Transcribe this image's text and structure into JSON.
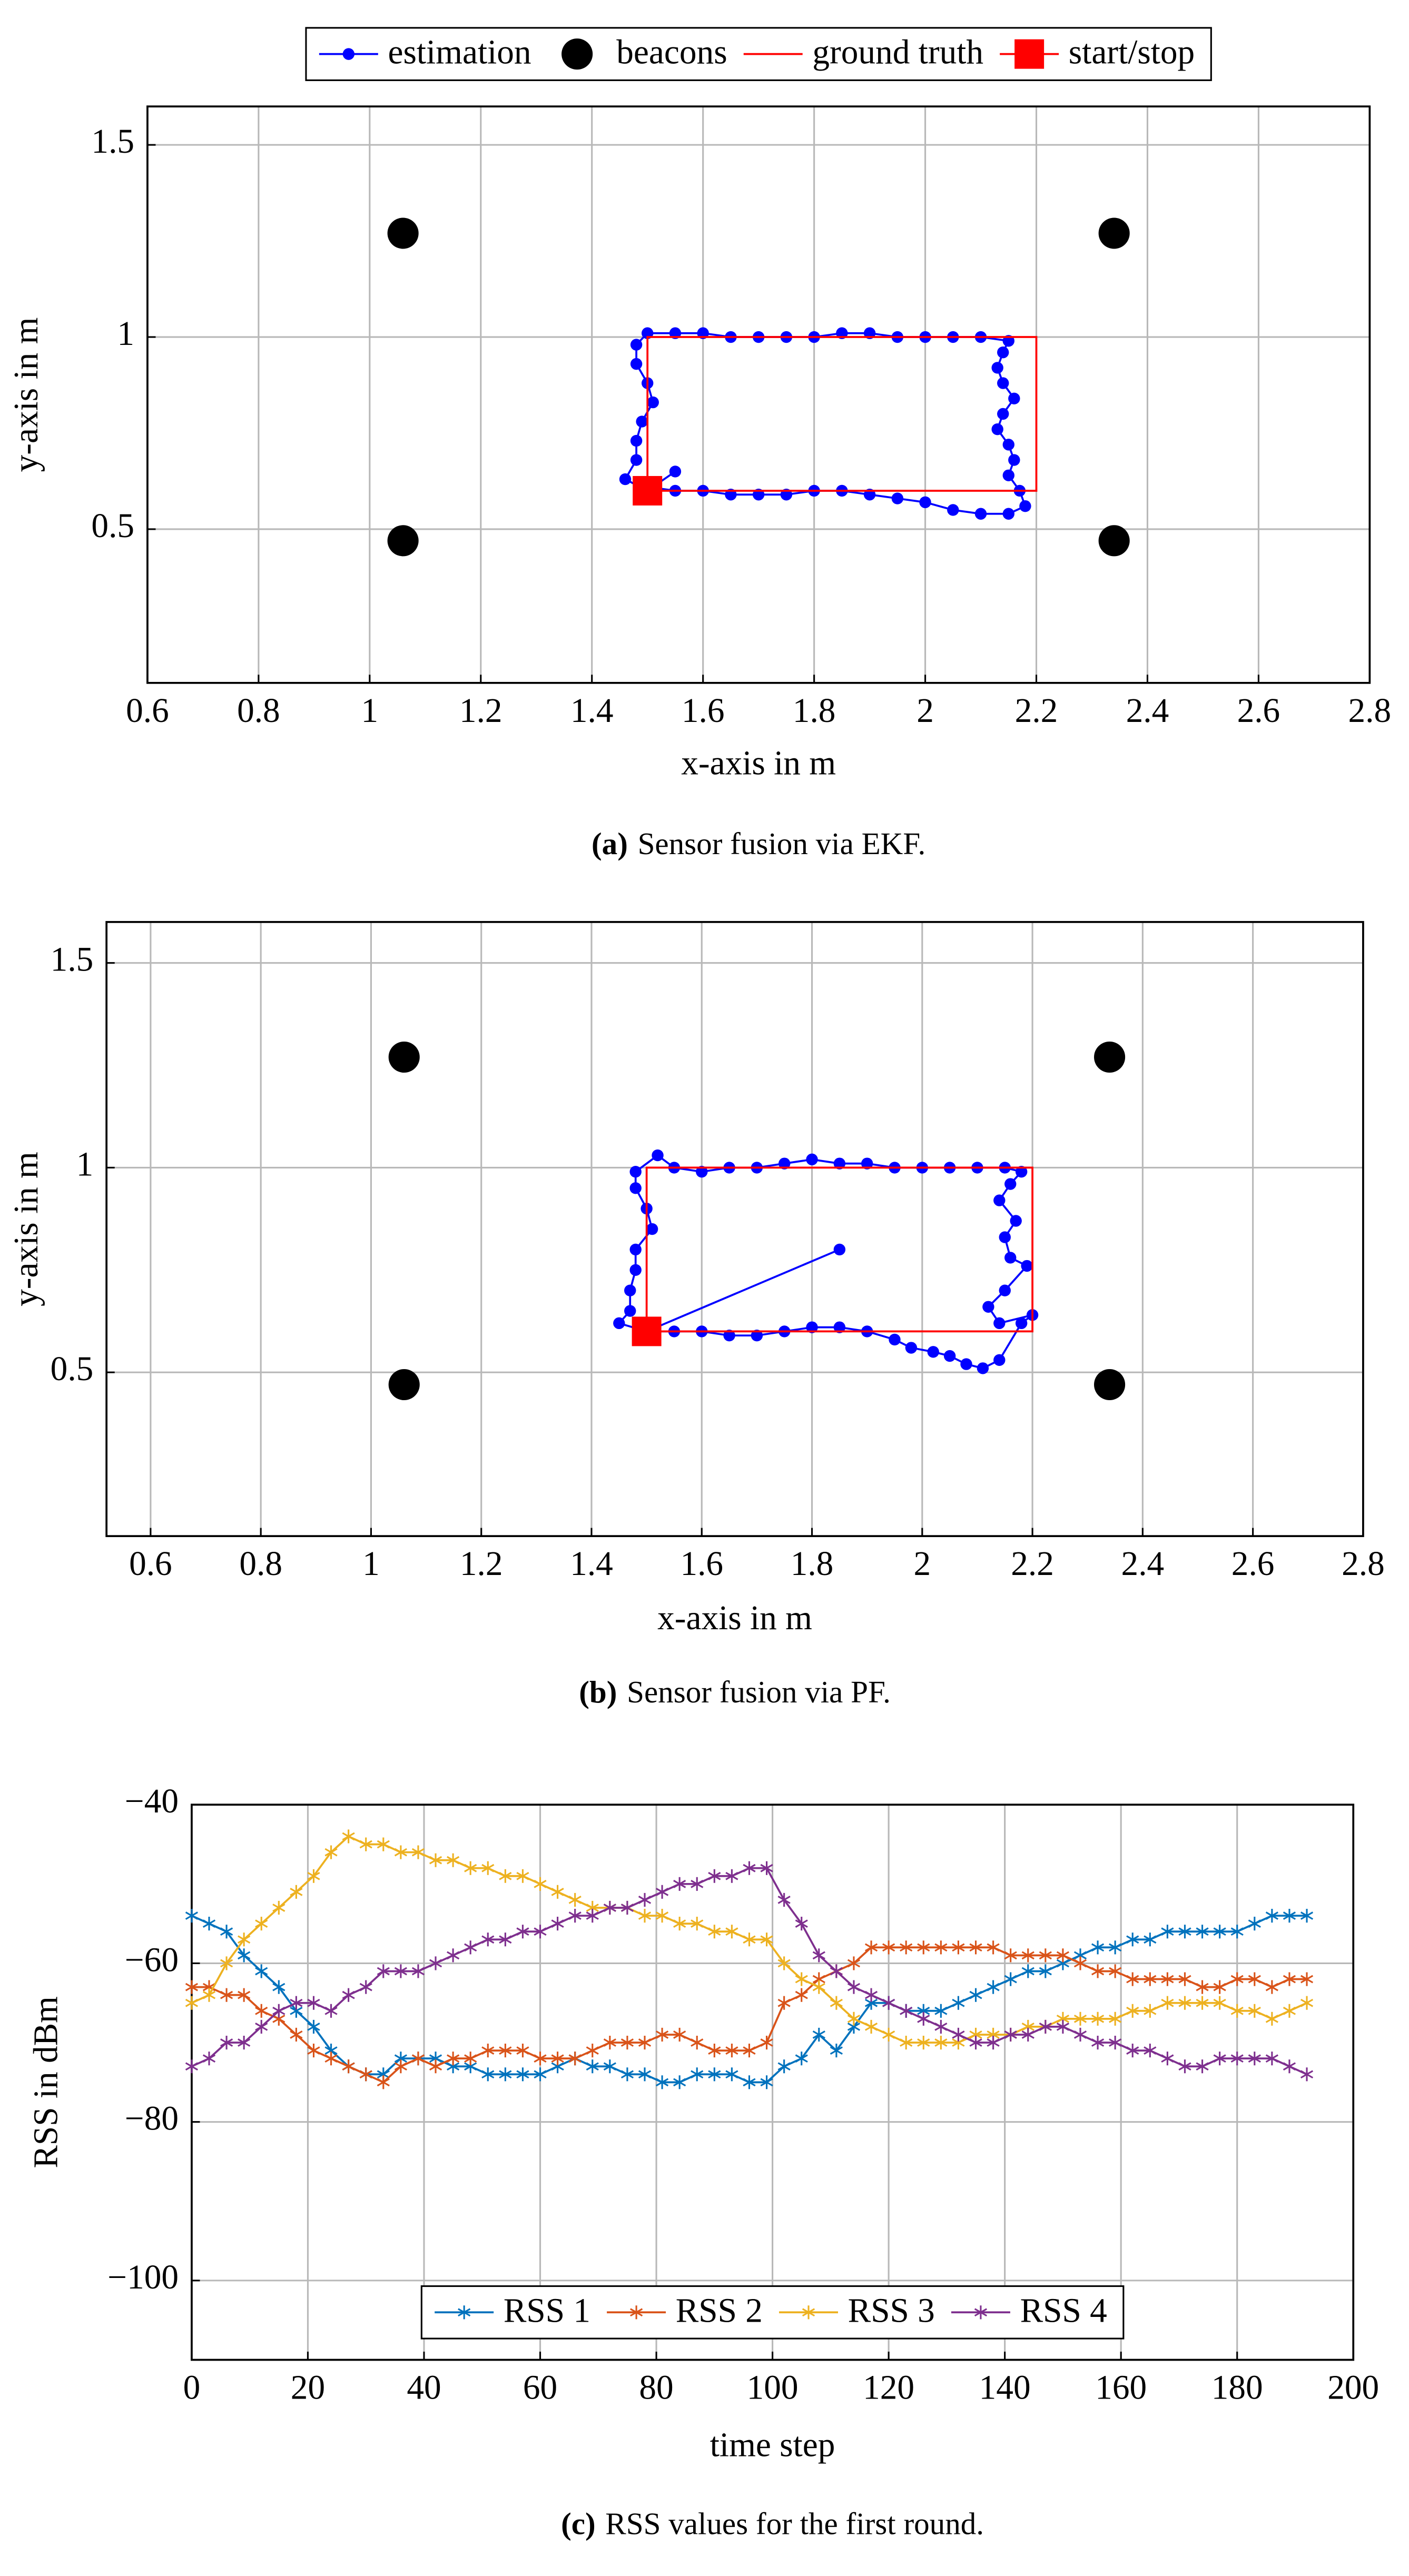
{
  "chart_data": [
    {
      "type": "line",
      "caption_label": "(a)",
      "caption": "Sensor fusion via EKF.",
      "xlabel": "x-axis in m",
      "ylabel": "y-axis in m",
      "xlim": [
        0.6,
        2.8
      ],
      "ylim": [
        0.1,
        1.6
      ],
      "xticks": [
        0.6,
        0.8,
        1,
        1.2,
        1.4,
        1.6,
        1.8,
        2,
        2.2,
        2.4,
        2.6,
        2.8
      ],
      "yticks": [
        0.5,
        1,
        1.5
      ],
      "grid": true,
      "legend": "top-outside",
      "series": [
        {
          "name": "estimation",
          "color": "#0000ff",
          "marker": "dot",
          "line": true,
          "x": [
            1.5,
            1.55,
            1.6,
            1.65,
            1.7,
            1.75,
            1.8,
            1.85,
            1.9,
            1.95,
            2.0,
            2.05,
            2.1,
            2.15,
            2.18,
            2.17,
            2.15,
            2.16,
            2.15,
            2.13,
            2.14,
            2.16,
            2.14,
            2.13,
            2.14,
            2.15,
            2.1,
            2.05,
            2.0,
            1.95,
            1.9,
            1.85,
            1.8,
            1.75,
            1.7,
            1.65,
            1.6,
            1.55,
            1.5,
            1.48,
            1.48,
            1.5,
            1.51,
            1.49,
            1.48,
            1.48,
            1.46,
            1.5,
            1.55
          ],
          "values": [
            0.61,
            0.6,
            0.6,
            0.59,
            0.59,
            0.59,
            0.6,
            0.6,
            0.59,
            0.58,
            0.57,
            0.55,
            0.54,
            0.54,
            0.56,
            0.6,
            0.64,
            0.68,
            0.72,
            0.76,
            0.8,
            0.84,
            0.88,
            0.92,
            0.96,
            0.99,
            1.0,
            1.0,
            1.0,
            1.0,
            1.01,
            1.01,
            1.0,
            1.0,
            1.0,
            1.0,
            1.01,
            1.01,
            1.01,
            0.98,
            0.93,
            0.88,
            0.83,
            0.78,
            0.73,
            0.68,
            0.63,
            0.6,
            0.65
          ]
        },
        {
          "name": "beacons",
          "color": "#000000",
          "marker": "disc",
          "line": false,
          "x": [
            1.06,
            2.34,
            1.06,
            2.34
          ],
          "values": [
            1.27,
            1.27,
            0.47,
            0.47
          ]
        },
        {
          "name": "ground truth",
          "color": "#ff0000",
          "marker": "none",
          "line": true,
          "x": [
            1.5,
            2.2,
            2.2,
            1.5,
            1.5
          ],
          "values": [
            0.6,
            0.6,
            1.0,
            1.0,
            0.6
          ]
        },
        {
          "name": "start/stop",
          "color": "#ff0000",
          "marker": "square",
          "line": true,
          "x": [
            1.5
          ],
          "values": [
            0.6
          ]
        }
      ]
    },
    {
      "type": "line",
      "caption_label": "(b)",
      "caption": "Sensor fusion via PF.",
      "xlabel": "x-axis in m",
      "ylabel": "y-axis in m",
      "xlim": [
        0.52,
        2.8
      ],
      "ylim": [
        0.1,
        1.6
      ],
      "xticks": [
        0.6,
        0.8,
        1,
        1.2,
        1.4,
        1.6,
        1.8,
        2,
        2.2,
        2.4,
        2.6,
        2.8
      ],
      "yticks": [
        0.5,
        1,
        1.5
      ],
      "grid": true,
      "series": [
        {
          "color": "#0000ff",
          "marker": "dot",
          "line": true,
          "x": [
            1.5,
            1.55,
            1.6,
            1.65,
            1.7,
            1.75,
            1.8,
            1.85,
            1.9,
            1.95,
            1.98,
            2.02,
            2.05,
            2.08,
            2.11,
            2.14,
            2.18,
            2.2,
            2.14,
            2.12,
            2.15,
            2.19,
            2.16,
            2.15,
            2.17,
            2.14,
            2.16,
            2.18,
            2.15,
            2.1,
            2.05,
            2.0,
            1.95,
            1.9,
            1.85,
            1.8,
            1.75,
            1.7,
            1.65,
            1.6,
            1.55,
            1.52,
            1.48,
            1.48,
            1.5,
            1.51,
            1.48,
            1.48,
            1.47,
            1.47,
            1.45,
            1.5,
            1.85
          ],
          "values": [
            0.6,
            0.6,
            0.6,
            0.59,
            0.59,
            0.6,
            0.61,
            0.61,
            0.6,
            0.58,
            0.56,
            0.55,
            0.54,
            0.52,
            0.51,
            0.53,
            0.62,
            0.64,
            0.62,
            0.66,
            0.7,
            0.76,
            0.78,
            0.83,
            0.87,
            0.92,
            0.96,
            0.99,
            1.0,
            1.0,
            1.0,
            1.0,
            1.0,
            1.01,
            1.01,
            1.02,
            1.01,
            1.0,
            1.0,
            0.99,
            1.0,
            1.03,
            0.99,
            0.95,
            0.9,
            0.85,
            0.8,
            0.75,
            0.7,
            0.65,
            0.62,
            0.6,
            0.8
          ]
        },
        {
          "color": "#000000",
          "marker": "disc",
          "line": false,
          "x": [
            1.06,
            2.34,
            1.06,
            2.34
          ],
          "values": [
            1.27,
            1.27,
            0.47,
            0.47
          ]
        },
        {
          "color": "#ff0000",
          "marker": "none",
          "line": true,
          "x": [
            1.5,
            2.2,
            2.2,
            1.5,
            1.5
          ],
          "values": [
            0.6,
            0.6,
            1.0,
            1.0,
            0.6
          ]
        },
        {
          "color": "#ff0000",
          "marker": "square",
          "line": true,
          "x": [
            1.5
          ],
          "values": [
            0.6
          ]
        }
      ]
    },
    {
      "type": "line",
      "caption_label": "(c)",
      "caption": "RSS values for the first round.",
      "xlabel": "time step",
      "ylabel": "RSS in dBm",
      "xlim": [
        0,
        200
      ],
      "ylim": [
        -110,
        -40
      ],
      "xticks": [
        0,
        20,
        40,
        60,
        80,
        100,
        120,
        140,
        160,
        180,
        200
      ],
      "yticks": [
        {
          "value": -40,
          "label": "−40"
        },
        {
          "value": -60,
          "label": "−60"
        },
        {
          "value": -80,
          "label": "−80"
        },
        {
          "value": -100,
          "label": "−100"
        }
      ],
      "grid": true,
      "legend": "bottom",
      "x": [
        0,
        3,
        6,
        9,
        12,
        15,
        18,
        21,
        24,
        27,
        30,
        33,
        36,
        39,
        42,
        45,
        48,
        51,
        54,
        57,
        60,
        63,
        66,
        69,
        72,
        75,
        78,
        81,
        84,
        87,
        90,
        93,
        96,
        99,
        102,
        105,
        108,
        111,
        114,
        117,
        120,
        123,
        126,
        129,
        132,
        135,
        138,
        141,
        144,
        147,
        150,
        153,
        156,
        159,
        162,
        165,
        168,
        171,
        174,
        177,
        180,
        183,
        186,
        189,
        192
      ],
      "series": [
        {
          "name": "RSS 1",
          "color": "#0072bd",
          "marker": "star",
          "line": true,
          "values": [
            -54,
            -55,
            -56,
            -59,
            -61,
            -63,
            -66,
            -68,
            -71,
            -73,
            -74,
            -74,
            -72,
            -72,
            -72,
            -73,
            -73,
            -74,
            -74,
            -74,
            -74,
            -73,
            -72,
            -73,
            -73,
            -74,
            -74,
            -75,
            -75,
            -74,
            -74,
            -74,
            -75,
            -75,
            -73,
            -72,
            -69,
            -71,
            -68,
            -65,
            -65,
            -66,
            -66,
            -66,
            -65,
            -64,
            -63,
            -62,
            -61,
            -61,
            -60,
            -59,
            -58,
            -58,
            -57,
            -57,
            -56,
            -56,
            -56,
            -56,
            -56,
            -55,
            -54,
            -54,
            -54
          ]
        },
        {
          "name": "RSS 2",
          "color": "#d95319",
          "marker": "star",
          "line": true,
          "values": [
            -63,
            -63,
            -64,
            -64,
            -66,
            -67,
            -69,
            -71,
            -72,
            -73,
            -74,
            -75,
            -73,
            -72,
            -73,
            -72,
            -72,
            -71,
            -71,
            -71,
            -72,
            -72,
            -72,
            -71,
            -70,
            -70,
            -70,
            -69,
            -69,
            -70,
            -71,
            -71,
            -71,
            -70,
            -65,
            -64,
            -62,
            -61,
            -60,
            -58,
            -58,
            -58,
            -58,
            -58,
            -58,
            -58,
            -58,
            -59,
            -59,
            -59,
            -59,
            -60,
            -61,
            -61,
            -62,
            -62,
            -62,
            -62,
            -63,
            -63,
            -62,
            -62,
            -63,
            -62,
            -62
          ]
        },
        {
          "name": "RSS 3",
          "color": "#edb120",
          "marker": "star",
          "line": true,
          "values": [
            -65,
            -64,
            -60,
            -57,
            -55,
            -53,
            -51,
            -49,
            -46,
            -44,
            -45,
            -45,
            -46,
            -46,
            -47,
            -47,
            -48,
            -48,
            -49,
            -49,
            -50,
            -51,
            -52,
            -53,
            -53,
            -53,
            -54,
            -54,
            -55,
            -55,
            -56,
            -56,
            -57,
            -57,
            -60,
            -62,
            -63,
            -65,
            -67,
            -68,
            -69,
            -70,
            -70,
            -70,
            -70,
            -69,
            -69,
            -69,
            -68,
            -68,
            -67,
            -67,
            -67,
            -67,
            -66,
            -66,
            -65,
            -65,
            -65,
            -65,
            -66,
            -66,
            -67,
            -66,
            -65
          ]
        },
        {
          "name": "RSS 4",
          "color": "#7e2f8e",
          "marker": "star",
          "line": true,
          "values": [
            -73,
            -72,
            -70,
            -70,
            -68,
            -66,
            -65,
            -65,
            -66,
            -64,
            -63,
            -61,
            -61,
            -61,
            -60,
            -59,
            -58,
            -57,
            -57,
            -56,
            -56,
            -55,
            -54,
            -54,
            -53,
            -53,
            -52,
            -51,
            -50,
            -50,
            -49,
            -49,
            -48,
            -48,
            -52,
            -55,
            -59,
            -61,
            -63,
            -64,
            -65,
            -66,
            -67,
            -68,
            -69,
            -70,
            -70,
            -69,
            -69,
            -68,
            -68,
            -69,
            -70,
            -70,
            -71,
            -71,
            -72,
            -73,
            -73,
            -72,
            -72,
            -72,
            -72,
            -73,
            -74
          ]
        }
      ]
    }
  ]
}
